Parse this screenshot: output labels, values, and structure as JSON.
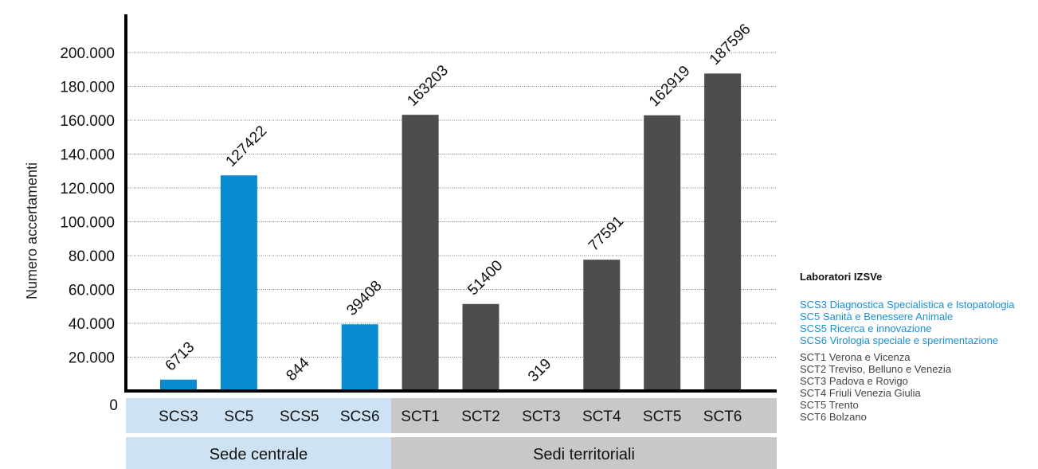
{
  "chart_data": {
    "type": "bar",
    "ylabel": "Numero accertamenti",
    "xlabel": "",
    "ylim": [
      0,
      200000
    ],
    "yticks": [
      "0",
      "20.000",
      "40.000",
      "60.000",
      "80.000",
      "100.000",
      "120.000",
      "140.000",
      "160.000",
      "180.000",
      "200.000"
    ],
    "grid": true,
    "categories": [
      "SCS3",
      "SC5",
      "SCS5",
      "SCS6",
      "SCT1",
      "SCT2",
      "SCT3",
      "SCT4",
      "SCT5",
      "SCT6"
    ],
    "values": [
      6713,
      127422,
      844,
      39408,
      163203,
      51400,
      319,
      77591,
      162919,
      187596
    ],
    "value_labels": [
      "6713",
      "127422",
      "844",
      "39408",
      "163203",
      "51400",
      "319",
      "77591",
      "162919",
      "187596"
    ],
    "groups": [
      {
        "label": "Sede centrale",
        "categories": [
          "SCS3",
          "SC5",
          "SCS5",
          "SCS6"
        ]
      },
      {
        "label": "Sedi territoriali",
        "categories": [
          "SCT1",
          "SCT2",
          "SCT3",
          "SCT4",
          "SCT5",
          "SCT6"
        ]
      }
    ],
    "legend_placement": "right"
  },
  "legend": {
    "title": "Laboratori IZSVe",
    "central": [
      "SCS3 Diagnostica Specialistica e Istopatologia",
      "SC5 Sanità e Benessere Animale",
      "SCS5 Ricerca e innovazione",
      "SCS6 Virologia speciale e sperimentazione"
    ],
    "territorial": [
      "SCT1 Verona e Vicenza",
      "SCT2 Treviso, Belluno e Venezia",
      "SCT3 Padova e Rovigo",
      "SCT4  Friuli Venezia Giulia",
      "SCT5 Trento",
      "SCT6 Bolzano"
    ]
  },
  "colors": {
    "central_bar": "#0a8ad0",
    "territorial_bar": "#4d4d4f",
    "central_band": "#cde3f4",
    "territorial_band": "#c8c8ca",
    "axis": "#000000",
    "grid": "#777777"
  }
}
